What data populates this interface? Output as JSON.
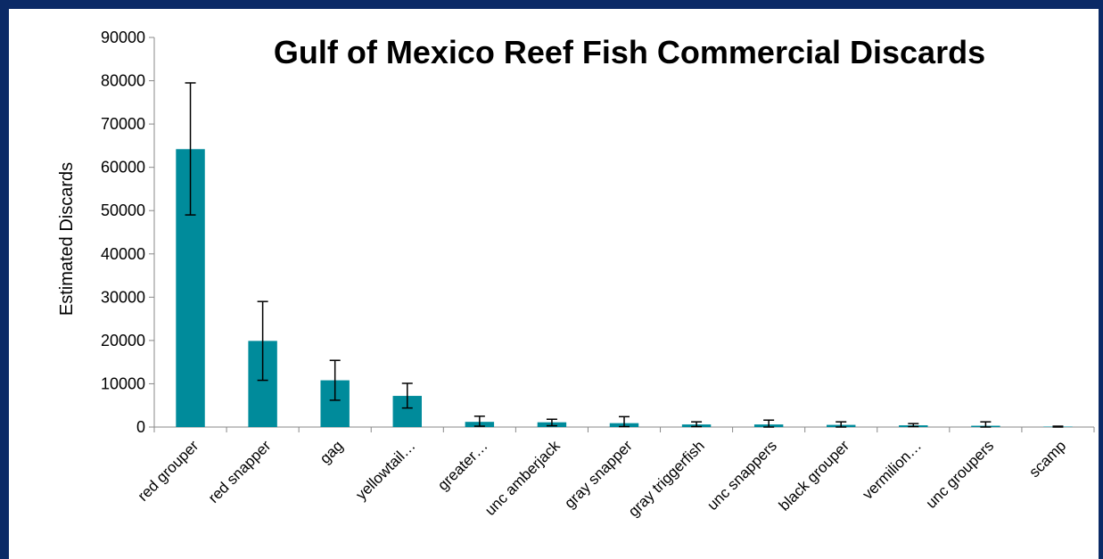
{
  "chart_data": {
    "type": "bar",
    "title": "Gulf of Mexico Reef Fish Commercial Discards",
    "ylabel": "Estimated Discards",
    "xlabel": "",
    "ylim": [
      0,
      90000
    ],
    "yticks": [
      0,
      10000,
      20000,
      30000,
      40000,
      50000,
      60000,
      70000,
      80000,
      90000
    ],
    "categories": [
      "red grouper",
      "red snapper",
      "gag",
      "yellowtail…",
      "greater…",
      "unc amberjack",
      "gray snapper",
      "gray triggerfish",
      "unc snappers",
      "black grouper",
      "vermilion…",
      "unc groupers",
      "scamp"
    ],
    "values": [
      64200,
      19900,
      10800,
      7200,
      1200,
      1100,
      900,
      600,
      600,
      500,
      400,
      300,
      100
    ],
    "error_low": [
      49000,
      10800,
      6200,
      4400,
      200,
      300,
      100,
      100,
      0,
      0,
      100,
      0,
      0
    ],
    "error_high": [
      79500,
      29000,
      15400,
      10100,
      2500,
      1800,
      2400,
      1200,
      1600,
      1200,
      800,
      1200,
      200
    ],
    "bar_color": "#008b9b",
    "grid": false,
    "legend": "none"
  }
}
